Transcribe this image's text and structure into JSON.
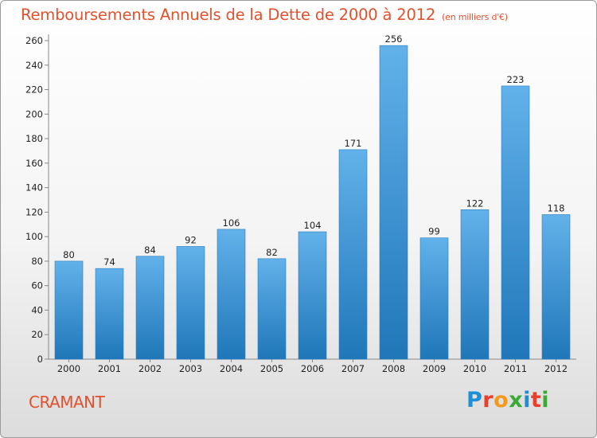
{
  "chart_data": {
    "type": "bar",
    "title": "Remboursements Annuels de la Dette de 2000 à 2012",
    "unit": "(en milliers d'€)",
    "categories": [
      "2000",
      "2001",
      "2002",
      "2003",
      "2004",
      "2005",
      "2006",
      "2007",
      "2008",
      "2009",
      "2010",
      "2011",
      "2012"
    ],
    "values": [
      80,
      74,
      84,
      92,
      106,
      82,
      104,
      171,
      256,
      99,
      122,
      223,
      118
    ],
    "ylim": [
      0,
      260
    ],
    "yticks": [
      0,
      20,
      40,
      60,
      80,
      100,
      120,
      140,
      160,
      180,
      200,
      220,
      240,
      260
    ],
    "grid": false,
    "xlabel": "",
    "ylabel": ""
  },
  "town": "CRAMANT",
  "brand": {
    "letters": [
      "P",
      "r",
      "o",
      "x",
      "i",
      "t",
      "i"
    ],
    "colors": [
      "#1e8fd6",
      "#e8402a",
      "#f29a1d",
      "#3aaa35",
      "#1e8fd6",
      "#e8402a",
      "#3aaa35"
    ]
  },
  "colors": {
    "title": "#e0522e",
    "bar_top": "#62b1ea",
    "bar_bottom": "#1f77b9"
  }
}
